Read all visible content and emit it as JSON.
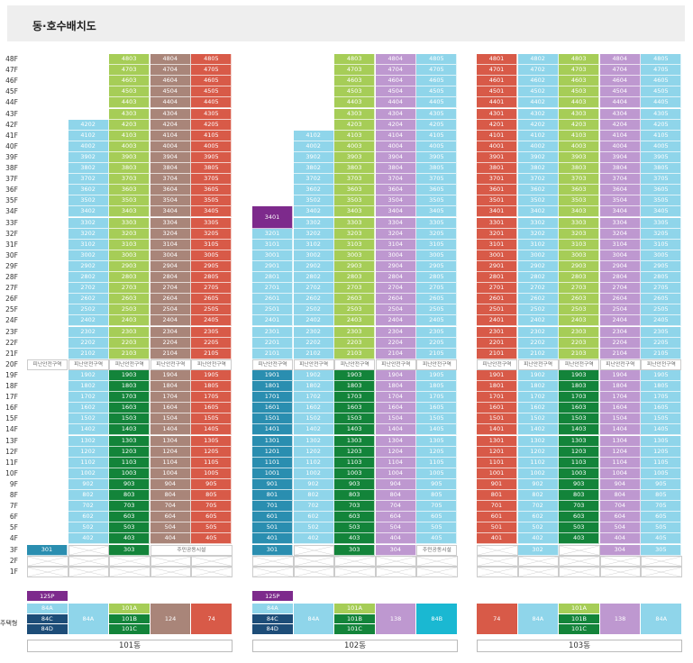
{
  "title": "동·호수배치도",
  "floors": [
    "48F",
    "47F",
    "46F",
    "45F",
    "44F",
    "43F",
    "42F",
    "41F",
    "40F",
    "39F",
    "38F",
    "37F",
    "36F",
    "35F",
    "34F",
    "33F",
    "32F",
    "31F",
    "30F",
    "29F",
    "28F",
    "27F",
    "26F",
    "25F",
    "24F",
    "23F",
    "22F",
    "21F",
    "20F",
    "19F",
    "18F",
    "17F",
    "16F",
    "15F",
    "14F",
    "13F",
    "12F",
    "11F",
    "10F",
    "9F",
    "8F",
    "7F",
    "6F",
    "5F",
    "4F",
    "3F",
    "2F",
    "1F"
  ],
  "refuge_label": "피난안전구역",
  "community_label": "주민공동시설",
  "unit_type_label": "주택형",
  "buildings": [
    {
      "name": "101동",
      "unit_types": [
        {
          "label": "125P",
          "color": "#7d2a8c"
        },
        {
          "label": "84A",
          "color": "#8fd5ea"
        },
        {
          "label": "84C",
          "color": "#1d4d78"
        },
        {
          "label": "84D",
          "color": "#1d4d78"
        },
        {
          "label": "84A",
          "color": "#8fd5ea"
        },
        {
          "label": "101A",
          "color": "#a6cd57"
        },
        {
          "label": "101B",
          "color": "#13843a"
        },
        {
          "label": "101C",
          "color": "#13843a"
        },
        {
          "label": "124",
          "color": "#a98579"
        },
        {
          "label": "74",
          "color": "#d85a48"
        }
      ]
    },
    {
      "name": "102동",
      "unit_types": [
        {
          "label": "125P",
          "color": "#7d2a8c"
        },
        {
          "label": "84A",
          "color": "#8fd5ea"
        },
        {
          "label": "84C",
          "color": "#1d4d78"
        },
        {
          "label": "84D",
          "color": "#1d4d78"
        },
        {
          "label": "84A",
          "color": "#8fd5ea"
        },
        {
          "label": "101A",
          "color": "#a6cd57"
        },
        {
          "label": "101B",
          "color": "#13843a"
        },
        {
          "label": "101C",
          "color": "#13843a"
        },
        {
          "label": "138",
          "color": "#be98d0"
        },
        {
          "label": "84B",
          "color": "#1ab8d2"
        }
      ]
    },
    {
      "name": "103동",
      "unit_types": [
        {
          "label": "74",
          "color": "#d85a48"
        },
        {
          "label": "84A",
          "color": "#8fd5ea"
        },
        {
          "label": "101A",
          "color": "#a6cd57"
        },
        {
          "label": "101B",
          "color": "#13843a"
        },
        {
          "label": "101C",
          "color": "#13843a"
        },
        {
          "label": "138",
          "color": "#be98d0"
        },
        {
          "label": "84A",
          "color": "#8fd5ea"
        }
      ]
    }
  ],
  "special_units": {
    "b101_3f_1": "301",
    "b101_3f_3": "303",
    "b102_3f_1": "301",
    "b102_3f_3": "303",
    "b102_3f_4": "304",
    "b103_3f_2": "302",
    "b103_3f_4": "304",
    "b103_3f_5": "305"
  },
  "colors": {
    "light_blue": "#8fd5ea",
    "green": "#a6cd57",
    "brown": "#a98579",
    "red": "#d85a48",
    "lavender": "#be98d0",
    "purple": "#7d2a8c",
    "blue": "#2a8eb0",
    "dark_green": "#13843a",
    "navy": "#1d4d78",
    "teal": "#1ab8d2"
  }
}
